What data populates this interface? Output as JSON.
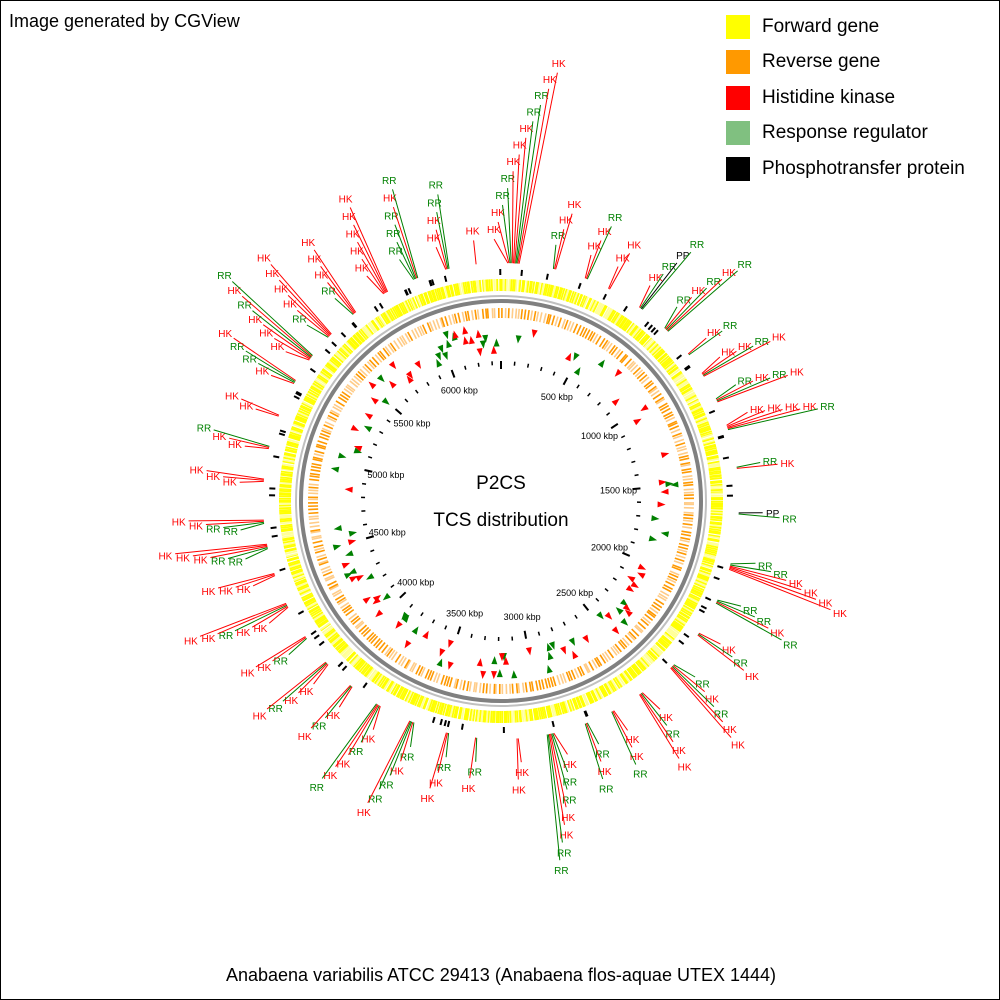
{
  "credit": "Image generated by CGView",
  "legend": [
    {
      "label": "Forward gene",
      "color": "#ffff00"
    },
    {
      "label": "Reverse gene",
      "color": "#ff9900"
    },
    {
      "label": "Histidine kinase",
      "color": "#ff0000"
    },
    {
      "label": "Response regulator",
      "color": "#80c080"
    },
    {
      "label": "Phosphotransfer protein",
      "color": "#000000"
    }
  ],
  "center": {
    "line1": "P2CS",
    "line2": "TCS distribution"
  },
  "genome": "Anabaena variabilis ATCC 29413 (Anabaena flos-aquae UTEX 1444)",
  "genome_length_kbp": 6365,
  "ruler_ticks": [
    "500 kbp",
    "1000 kbp",
    "1500 kbp",
    "2000 kbp",
    "2500 kbp",
    "3000 kbp",
    "3500 kbp",
    "4000 kbp",
    "4500 kbp",
    "5000 kbp",
    "5500 kbp",
    "6000 kbp"
  ],
  "colors": {
    "hk": "#ff0000",
    "rr": "#008000",
    "pp": "#000000",
    "forward": "#ffff00",
    "reverse": "#ff9900",
    "backbone": "#808080",
    "rr_marker": "#008000"
  },
  "features": [
    {
      "angle": 3,
      "labels": [
        "HK",
        "HK",
        "RR",
        "RR",
        "HK",
        "HK",
        "HK",
        "RR",
        "RR",
        "HK",
        "HK"
      ]
    },
    {
      "angle": 13,
      "labels": [
        "RR",
        "HK",
        "HK"
      ]
    },
    {
      "angle": 21,
      "labels": [
        "HK",
        "HK",
        "RR"
      ]
    },
    {
      "angle": 27,
      "labels": [
        "HK",
        "HK"
      ]
    },
    {
      "angle": 36,
      "labels": [
        "HK",
        "RR",
        "PP",
        "RR"
      ]
    },
    {
      "angle": 44,
      "labels": [
        "RR",
        "HK",
        "RR",
        "HK",
        "RR"
      ]
    },
    {
      "angle": 52,
      "labels": [
        "HK",
        "RR"
      ]
    },
    {
      "angle": 58,
      "labels": [
        "HK",
        "HK",
        "RR",
        "HK"
      ]
    },
    {
      "angle": 65,
      "labels": [
        "RR",
        "HK",
        "RR",
        "HK"
      ]
    },
    {
      "angle": 72,
      "labels": [
        "HK",
        "HK",
        "HK",
        "HK",
        "RR"
      ]
    },
    {
      "angle": 82,
      "labels": [
        "RR",
        "HK"
      ]
    },
    {
      "angle": 93,
      "labels": [
        "PP",
        "RR"
      ]
    },
    {
      "angle": 106,
      "labels": [
        "RR",
        "RR",
        "HK",
        "HK",
        "HK",
        "HK"
      ]
    },
    {
      "angle": 115,
      "labels": [
        "RR",
        "RR",
        "HK",
        "RR"
      ]
    },
    {
      "angle": 124,
      "labels": [
        "HK",
        "RR",
        "HK"
      ]
    },
    {
      "angle": 134,
      "labels": [
        "RR",
        "HK",
        "RR",
        "HK",
        "HK"
      ]
    },
    {
      "angle": 144,
      "labels": [
        "HK",
        "RR",
        "HK",
        "HK"
      ]
    },
    {
      "angle": 152,
      "labels": [
        "HK",
        "HK",
        "RR"
      ]
    },
    {
      "angle": 159,
      "labels": [
        "RR",
        "HK",
        "RR"
      ]
    },
    {
      "angle": 168,
      "labels": [
        "HK",
        "RR",
        "RR",
        "HK",
        "HK",
        "RR",
        "RR"
      ]
    },
    {
      "angle": 176,
      "labels": [
        "HK",
        "HK"
      ]
    },
    {
      "angle": 186,
      "labels": [
        "RR",
        "HK"
      ]
    },
    {
      "angle": 193,
      "labels": [
        "RR",
        "HK",
        "HK"
      ]
    },
    {
      "angle": 202,
      "labels": [
        "RR",
        "HK",
        "RR",
        "RR",
        "HK"
      ]
    },
    {
      "angle": 211,
      "labels": [
        "HK",
        "RR",
        "HK",
        "HK",
        "RR"
      ]
    },
    {
      "angle": 219,
      "labels": [
        "HK",
        "RR",
        "HK"
      ]
    },
    {
      "angle": 227,
      "labels": [
        "HK",
        "HK",
        "RR",
        "HK"
      ]
    },
    {
      "angle": 235,
      "labels": [
        "RR",
        "HK",
        "HK"
      ]
    },
    {
      "angle": 244,
      "labels": [
        "HK",
        "HK",
        "RR",
        "HK",
        "HK"
      ]
    },
    {
      "angle": 252,
      "labels": [
        "HK",
        "HK",
        "HK"
      ]
    },
    {
      "angle": 259,
      "labels": [
        "RR",
        "RR",
        "HK",
        "HK",
        "HK"
      ]
    },
    {
      "angle": 265,
      "labels": [
        "RR",
        "RR",
        "HK",
        "HK"
      ]
    },
    {
      "angle": 275,
      "labels": [
        "HK",
        "HK",
        "HK"
      ]
    },
    {
      "angle": 283,
      "labels": [
        "HK",
        "HK",
        "RR"
      ]
    },
    {
      "angle": 291,
      "labels": [
        "HK",
        "HK"
      ]
    },
    {
      "angle": 300,
      "labels": [
        "HK",
        "RR",
        "RR",
        "HK"
      ]
    },
    {
      "angle": 307,
      "labels": [
        "HK",
        "HK",
        "HK",
        "RR",
        "HK",
        "RR"
      ]
    },
    {
      "angle": 314,
      "labels": [
        "RR",
        "HK",
        "HK",
        "HK",
        "HK"
      ]
    },
    {
      "angle": 322,
      "labels": [
        "RR",
        "HK",
        "HK",
        "HK"
      ]
    },
    {
      "angle": 331,
      "labels": [
        "HK",
        "HK",
        "HK",
        "HK",
        "HK"
      ]
    },
    {
      "angle": 339,
      "labels": [
        "RR",
        "RR",
        "RR",
        "HK",
        "RR"
      ]
    },
    {
      "angle": 347,
      "labels": [
        "HK",
        "HK",
        "RR",
        "RR"
      ]
    },
    {
      "angle": 354,
      "labels": [
        "HK"
      ]
    }
  ]
}
